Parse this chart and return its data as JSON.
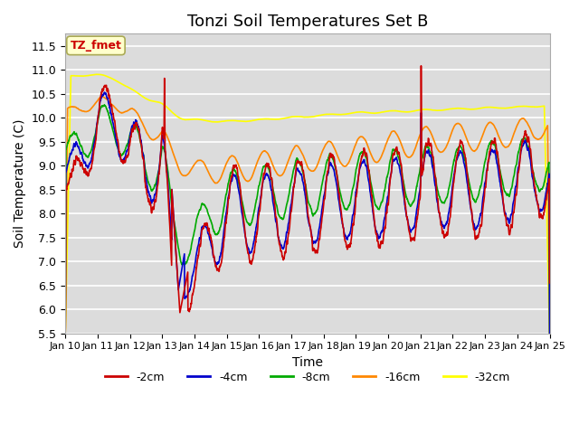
{
  "title": "Tonzi Soil Temperatures Set B",
  "xlabel": "Time",
  "ylabel": "Soil Temperature (C)",
  "ylim": [
    5.5,
    11.75
  ],
  "yticks": [
    5.5,
    6.0,
    6.5,
    7.0,
    7.5,
    8.0,
    8.5,
    9.0,
    9.5,
    10.0,
    10.5,
    11.0,
    11.5
  ],
  "xlim_days": [
    0,
    15
  ],
  "x_tick_labels": [
    "Jan 10",
    "Jan 11",
    "Jan 12",
    "Jan 13",
    "Jan 14",
    "Jan 15",
    "Jan 16",
    "Jan 17",
    "Jan 18",
    "Jan 19",
    "Jan 20",
    "Jan 21",
    "Jan 22",
    "Jan 23",
    "Jan 24",
    "Jan 25"
  ],
  "colors": {
    "2cm": "#cc0000",
    "4cm": "#0000cc",
    "8cm": "#00aa00",
    "16cm": "#ff8800",
    "32cm": "#ffff00"
  },
  "legend_labels": [
    "-2cm",
    "-4cm",
    "-8cm",
    "-16cm",
    "-32cm"
  ],
  "annotation_label": "TZ_fmet",
  "annotation_color": "#cc0000",
  "annotation_bg": "#ffffcc",
  "plot_bg": "#dcdcdc",
  "linewidth": 1.2,
  "title_fontsize": 13
}
